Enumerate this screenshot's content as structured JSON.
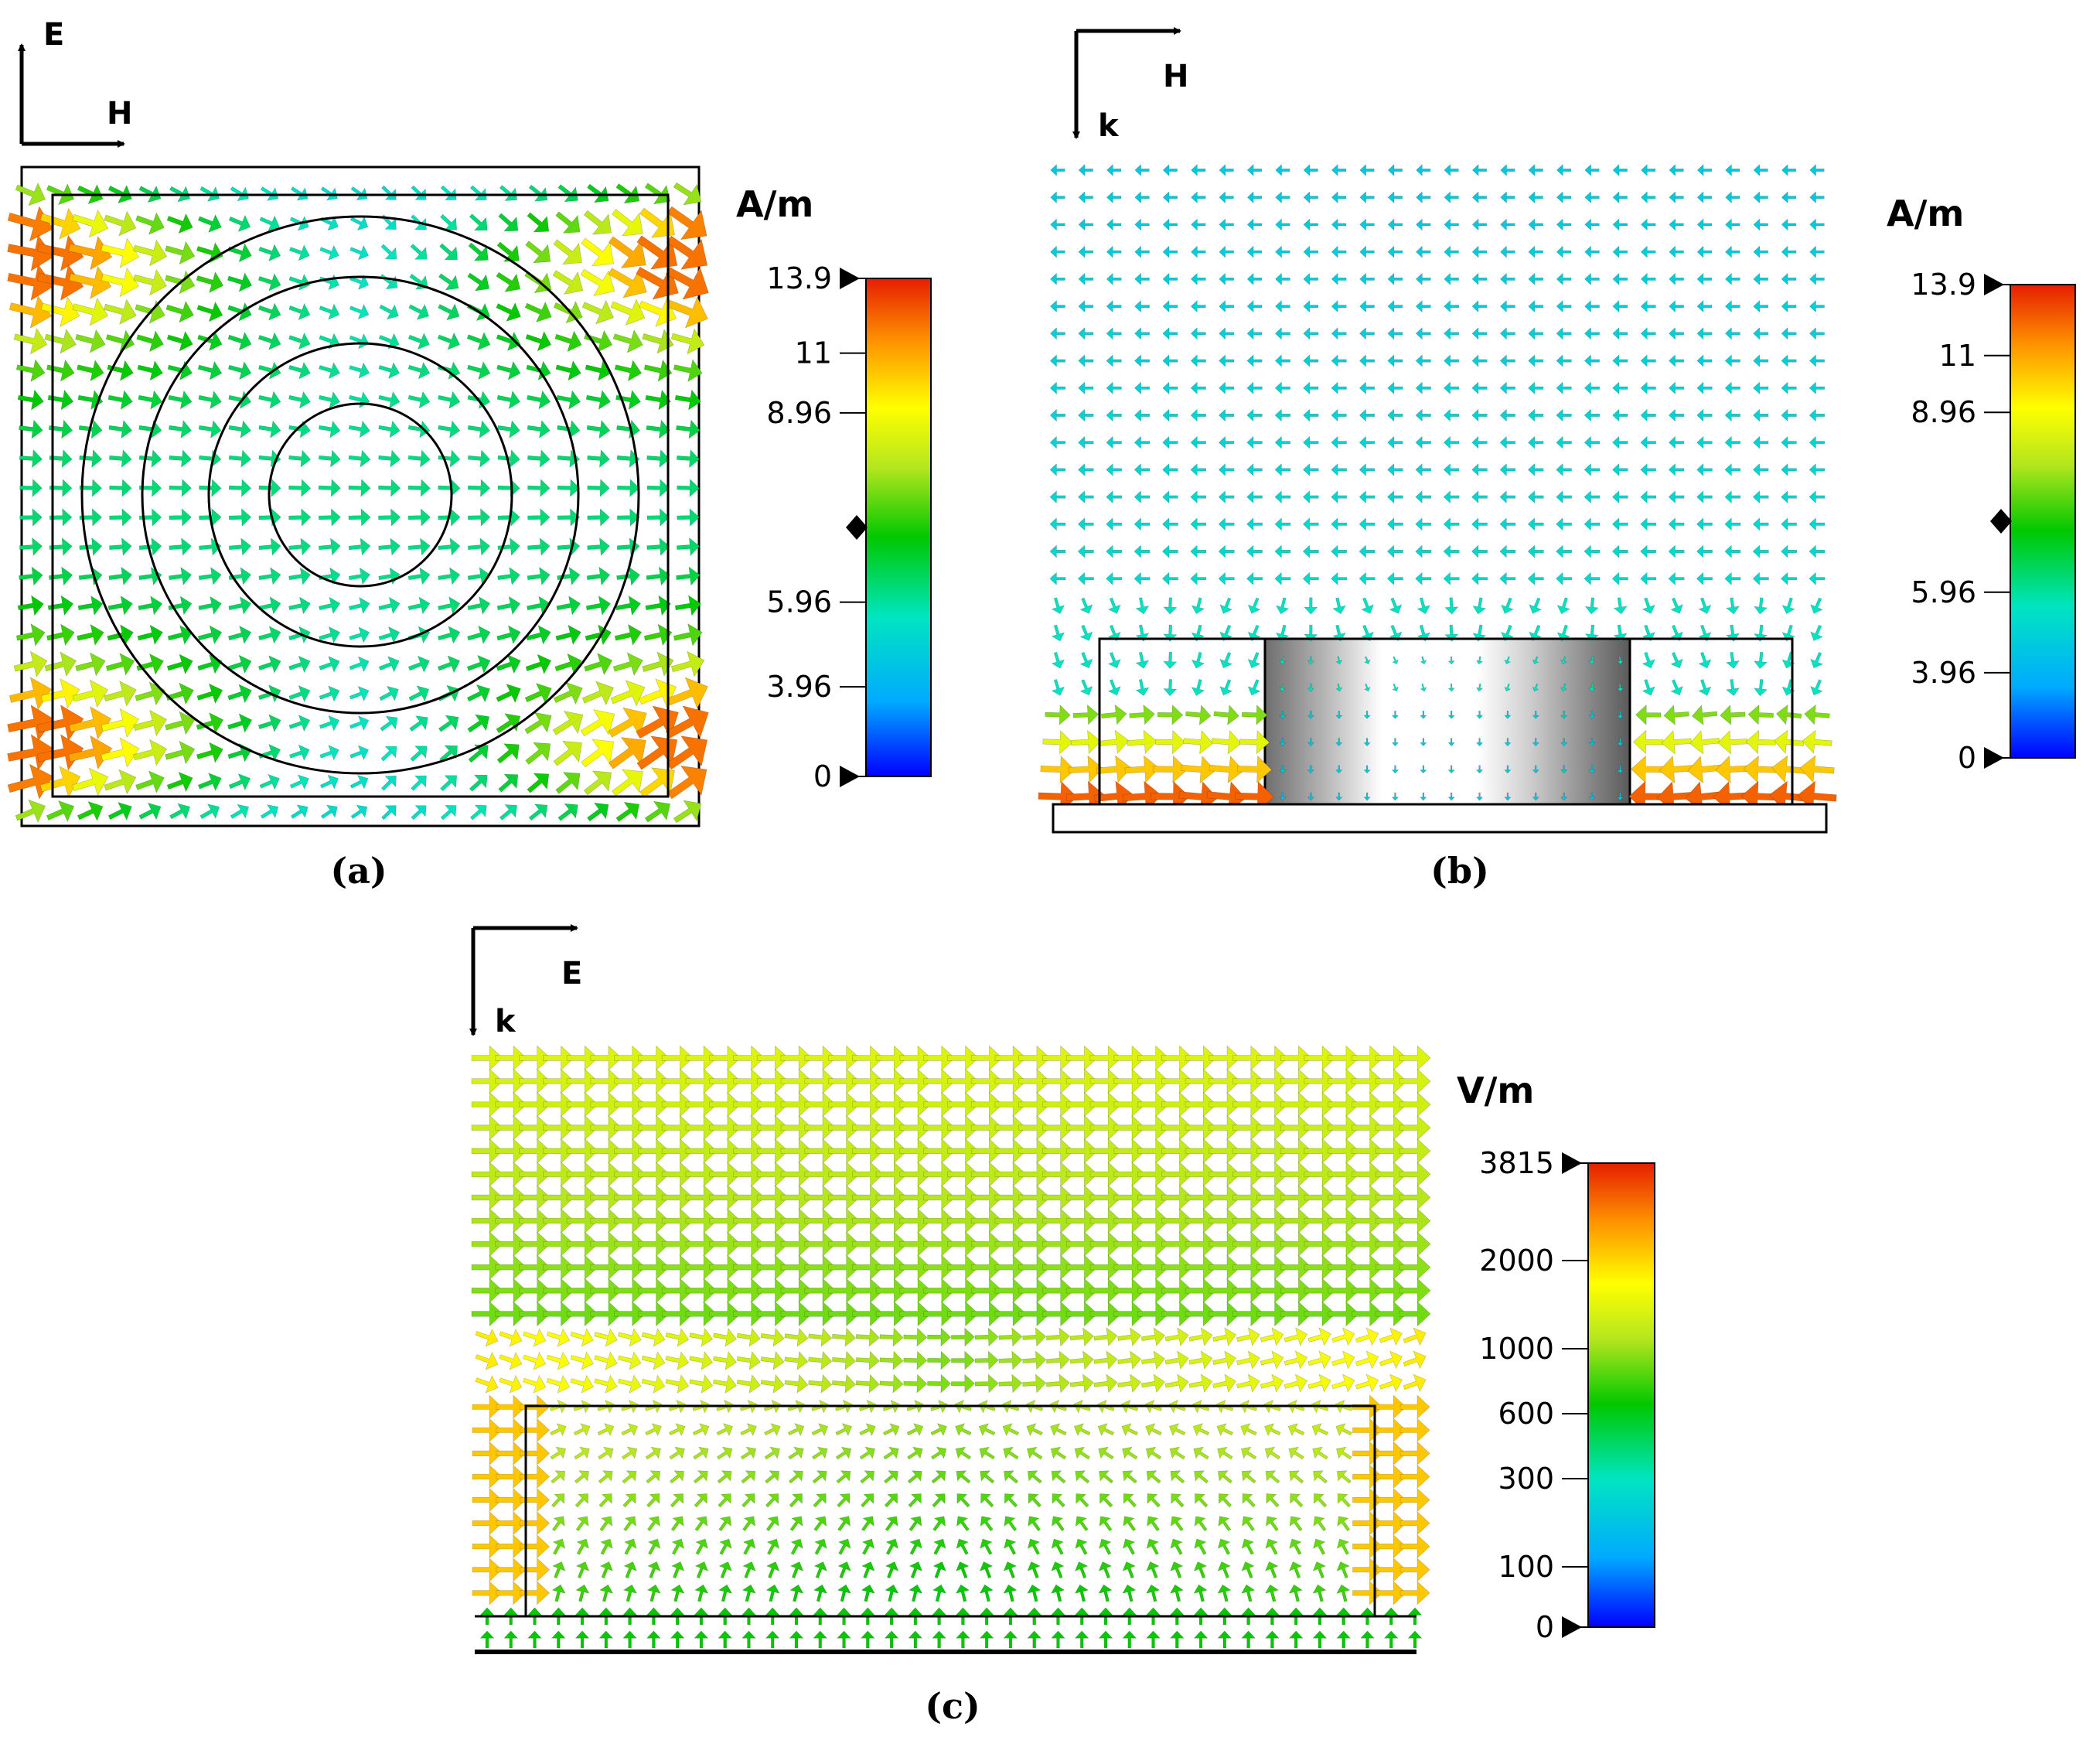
{
  "panels": {
    "a": {
      "caption": "(a)",
      "orientation": {
        "up": "E",
        "right": "H"
      },
      "colorbar": {
        "unit": "A/m",
        "ticks": [
          "13.9",
          "11",
          "8.96",
          "5.96",
          "3.96",
          "0"
        ],
        "max": 13.9,
        "min": 0
      }
    },
    "b": {
      "caption": "(b)",
      "orientation": {
        "down": "k",
        "right": "H"
      },
      "colorbar": {
        "unit": "A/m",
        "ticks": [
          "13.9",
          "11",
          "8.96",
          "5.96",
          "3.96",
          "0"
        ],
        "max": 13.9,
        "min": 0
      }
    },
    "c": {
      "caption": "(c)",
      "orientation": {
        "down": "k",
        "right": "E"
      },
      "colorbar": {
        "unit": "V/m",
        "ticks": [
          "3815",
          "2000",
          "1000",
          "600",
          "300",
          "100",
          "0"
        ],
        "max": 3815,
        "min": 0
      }
    }
  },
  "colors": {
    "colormap": [
      "#0000ff",
      "#00aaff",
      "#00e5c0",
      "#00c800",
      "#b4e61e",
      "#ffff00",
      "#ff9600",
      "#e61e00"
    ],
    "outline": "#000000"
  }
}
